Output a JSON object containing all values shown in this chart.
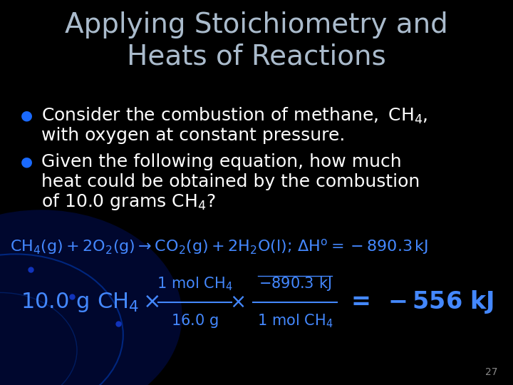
{
  "background_color": "#000000",
  "title": "Applying Stoichiometry and\nHeats of Reactions",
  "title_color": "#aabbcc",
  "title_fontsize": 28,
  "bullet1_line1": "Consider the combustion of methane, CH",
  "bullet1_sub1": "4",
  "bullet1_line1_cont": ",",
  "bullet1_line2": "with oxygen at constant pressure.",
  "bullet2_line1": "Given the following equation, how much",
  "bullet2_line2": "heat could be obtained by the combustion",
  "bullet2_line3": "of 10.0 grams CH",
  "bullet2_sub": "4",
  "bullet2_line3_cont": "?",
  "bullet_color": "#ffffff",
  "bullet_dot_color": "#1a6aff",
  "bullet_fontsize": 18,
  "equation_color": "#4488ff",
  "equation_fontsize": 16,
  "result_color": "#4488ff",
  "result_fontsize": 20,
  "page_number": "27",
  "page_color": "#888888",
  "page_fontsize": 10
}
